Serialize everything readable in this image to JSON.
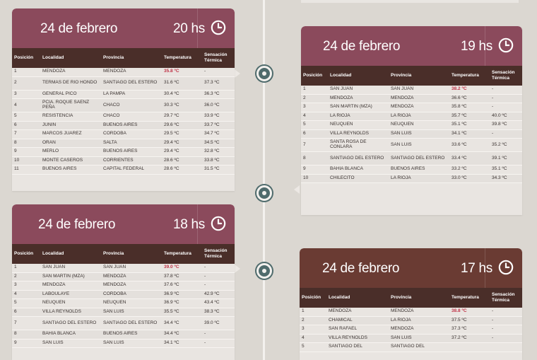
{
  "headers": {
    "posicion": "Posición",
    "localidad": "Localidad",
    "provincia": "Provincia",
    "temperatura": "Temperatura",
    "sensacion": "Sensación Térmica"
  },
  "colors": {
    "maroon": "#8b4a5c",
    "brown": "#6a3b33",
    "header_row": "#4a2e29",
    "highlight_temp": "#c1364a",
    "timeline_dot": "#4f6b6c"
  },
  "icons": {
    "clock": "clock-icon"
  },
  "cards": {
    "h20": {
      "date": "24 de febrero",
      "hour": "20 hs",
      "rows": [
        [
          "1",
          "MENDOZA",
          "MENDOZA",
          "35.8 ºC",
          "-"
        ],
        [
          "2",
          "TERMAS DE RIO HONDO",
          "SANTIAGO DEL ESTERO",
          "31.6 ºC",
          "37.3 ºC"
        ],
        [
          "3",
          "GENERAL PICO",
          "LA PAMPA",
          "30.4 ºC",
          "36.3 ºC"
        ],
        [
          "4",
          "PCIA. ROQUE SAENZ PEÑA",
          "CHACO",
          "30.3 ºC",
          "36.0 ºC"
        ],
        [
          "5",
          "RESISTENCIA",
          "CHACO",
          "29.7 ºC",
          "33.9 ºC"
        ],
        [
          "6",
          "JUNIN",
          "BUENOS AIRES",
          "29.6 ºC",
          "33.7 ºC"
        ],
        [
          "7",
          "MARCOS JUAREZ",
          "CORDOBA",
          "29.5 ºC",
          "34.7 ºC"
        ],
        [
          "8",
          "ORAN",
          "SALTA",
          "29.4 ºC",
          "34.5 ºC"
        ],
        [
          "9",
          "MERLO",
          "BUENOS AIRES",
          "29.4 ºC",
          "32.8 ºC"
        ],
        [
          "10",
          "MONTE CASEROS",
          "CORRIENTES",
          "28.6 ºC",
          "33.8 ºC"
        ],
        [
          "11",
          "BUENOS AIRES",
          "CAPITAL FEDERAL",
          "28.6 ºC",
          "31.5 ºC"
        ]
      ]
    },
    "h19": {
      "date": "24 de febrero",
      "hour": "19 hs",
      "rows": [
        [
          "1",
          "SAN JUAN",
          "SAN JUAN",
          "38.2 ºC",
          "-"
        ],
        [
          "2",
          "MENDOZA",
          "MENDOZA",
          "36.6 ºC",
          "-"
        ],
        [
          "3",
          "SAN MARTIN (MZA)",
          "MENDOZA",
          "35.8 ºC",
          "-"
        ],
        [
          "4",
          "LA RIOJA",
          "LA RIOJA",
          "35.7 ºC",
          "40.0 ºC"
        ],
        [
          "5",
          "NEUQUEN",
          "NEUQUEN",
          "35.1 ºC",
          "39.8 ºC"
        ],
        [
          "6",
          "VILLA REYNOLDS",
          "SAN LUIS",
          "34.1 ºC",
          "-"
        ],
        [
          "7",
          "SANTA ROSA DE CONLARA",
          "SAN LUIS",
          "33.6 ºC",
          "35.2 ºC"
        ],
        [
          "8",
          "SANTIAGO DEL ESTERO",
          "SANTIAGO DEL ESTERO",
          "33.4 ºC",
          "39.1 ºC"
        ],
        [
          "9",
          "BAHIA BLANCA",
          "BUENOS AIRES",
          "33.2 ºC",
          "35.1 ºC"
        ],
        [
          "10",
          "CHILECITO",
          "LA RIOJA",
          "33.0 ºC",
          "34.3 ºC"
        ]
      ]
    },
    "h18": {
      "date": "24 de febrero",
      "hour": "18 hs",
      "rows": [
        [
          "1",
          "SAN JUAN",
          "SAN JUAN",
          "39.0 ºC",
          "-"
        ],
        [
          "2",
          "SAN MARTIN (MZA)",
          "MENDOZA",
          "37.8 ºC",
          "-"
        ],
        [
          "3",
          "MENDOZA",
          "MENDOZA",
          "37.6 ºC",
          "-"
        ],
        [
          "4",
          "LABOULAYE",
          "CORDOBA",
          "36.9 ºC",
          "42.9 ºC"
        ],
        [
          "5",
          "NEUQUEN",
          "NEUQUEN",
          "36.9 ºC",
          "43.4 ºC"
        ],
        [
          "6",
          "VILLA REYNOLDS",
          "SAN LUIS",
          "35.5 ºC",
          "38.3 ºC"
        ],
        [
          "7",
          "SANTIAGO DEL ESTERO",
          "SANTIAGO DEL ESTERO",
          "34.4 ºC",
          "39.0 ºC"
        ],
        [
          "8",
          "BAHIA BLANCA",
          "BUENOS AIRES",
          "34.4 ºC",
          "-"
        ],
        [
          "9",
          "SAN LUIS",
          "SAN LUIS",
          "34.1 ºC",
          "-"
        ]
      ]
    },
    "h17": {
      "date": "24 de febrero",
      "hour": "17 hs",
      "rows": [
        [
          "1",
          "MENDOZA",
          "MENDOZA",
          "38.8 ºC",
          "-"
        ],
        [
          "2",
          "CHAMICAL",
          "LA RIOJA",
          "37.5 ºC",
          "-"
        ],
        [
          "3",
          "SAN RAFAEL",
          "MENDOZA",
          "37.3 ºC",
          "-"
        ],
        [
          "4",
          "VILLA REYNOLDS",
          "SAN LUIS",
          "37.2 ºC",
          "-"
        ],
        [
          "5",
          "SANTIAGO DEL",
          "SANTIAGO DEL",
          "",
          ""
        ]
      ]
    }
  }
}
